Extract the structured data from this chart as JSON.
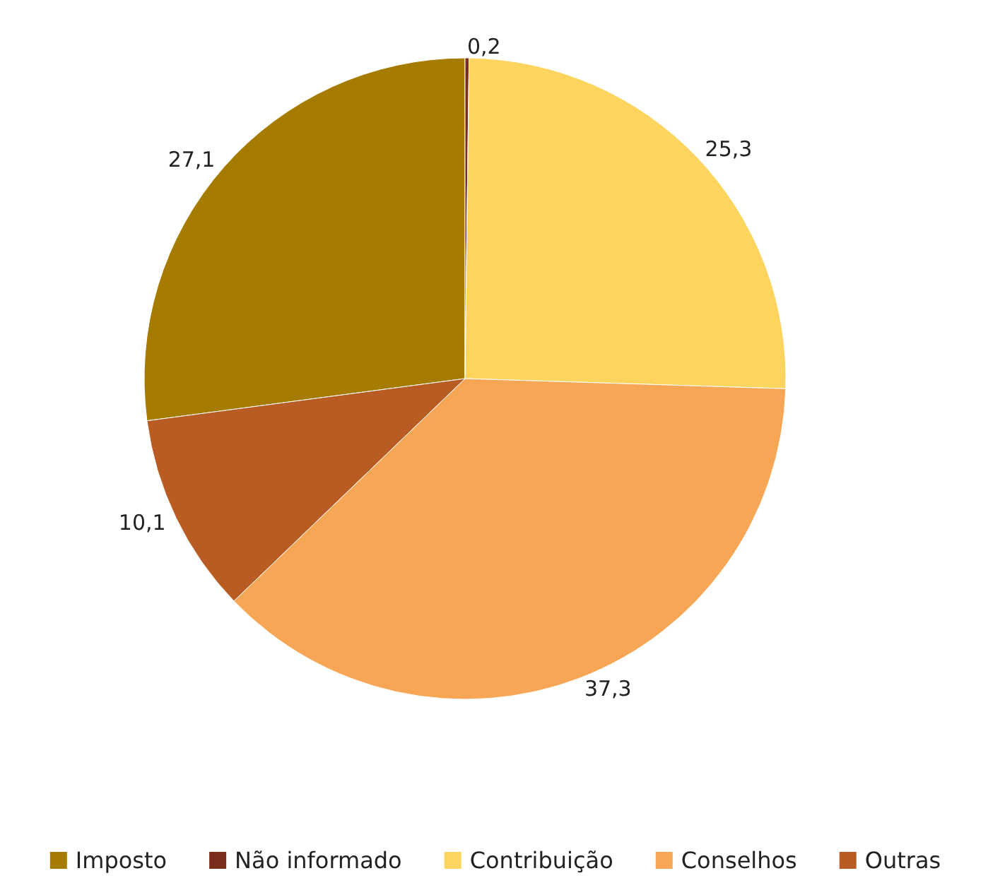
{
  "chart_data": {
    "type": "pie",
    "categories": [
      "Imposto",
      "Não informado",
      "Contribuição",
      "Conselhos",
      "Outras"
    ],
    "values": [
      27.1,
      0.2,
      25.3,
      37.3,
      10.1
    ],
    "value_labels": [
      "27,1",
      "0,2",
      "25,3",
      "37,3",
      "10,1"
    ],
    "colors": [
      "#a67c00",
      "#7b2c1a",
      "#fdd55e",
      "#f7a655",
      "#b85c24"
    ],
    "legend": "bottom"
  }
}
